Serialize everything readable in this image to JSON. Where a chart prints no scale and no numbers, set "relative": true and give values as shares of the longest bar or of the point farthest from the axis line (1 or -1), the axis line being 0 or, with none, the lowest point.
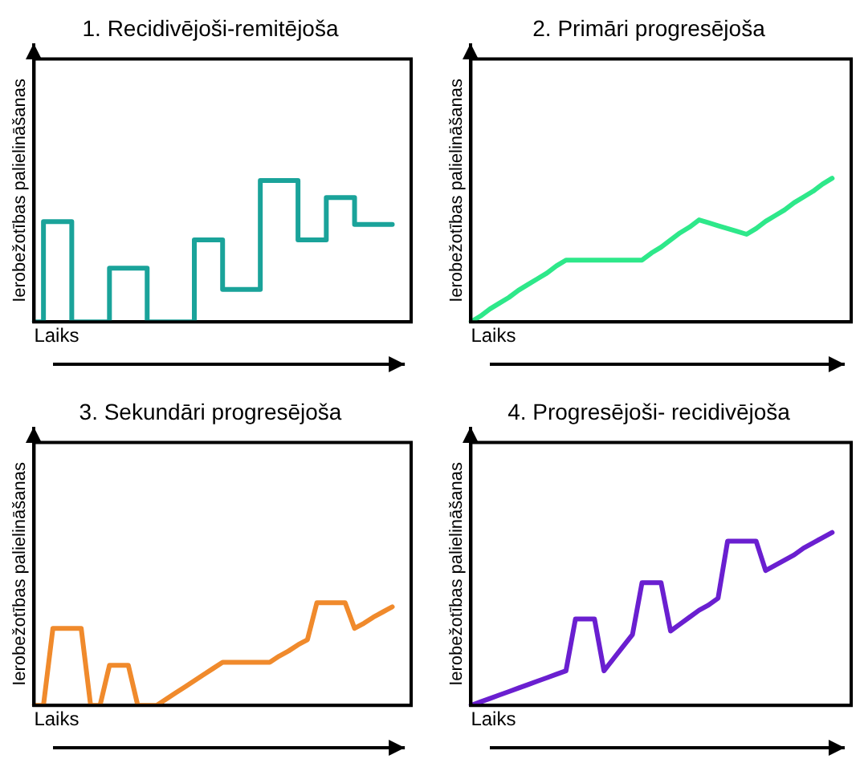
{
  "chart_data": [
    {
      "type": "step",
      "title": "1. Recidivējoši-remitējoša",
      "xlabel": "Laiks",
      "ylabel": "Ierobežotības palielināšanas",
      "relative": true,
      "tick_labels": false,
      "marker": "none",
      "categories": [
        null,
        null,
        null,
        null,
        null,
        null,
        null,
        null,
        null,
        null,
        null,
        null,
        null,
        null,
        null,
        null,
        null,
        null,
        null,
        null,
        null,
        null,
        null,
        null,
        null,
        null,
        null,
        null,
        null,
        null,
        null,
        null,
        null,
        null,
        null,
        null,
        null,
        null,
        null,
        null,
        null
      ],
      "series": [
        {
          "color": "#1aa39a",
          "values": [
            0,
            0,
            0.71,
            0.71,
            0.71,
            0,
            0,
            0,
            0,
            0.38,
            0.38,
            0.38,
            0.38,
            0,
            0,
            0,
            0,
            0,
            0.58,
            0.58,
            0.58,
            0.23,
            0.23,
            0.23,
            0.23,
            1,
            1,
            1,
            1,
            0.58,
            0.58,
            0.58,
            0.88,
            0.88,
            0.88,
            0.69,
            0.69,
            0.69,
            0.69,
            null,
            null
          ]
        }
      ]
    },
    {
      "type": "line",
      "title": "2. Primāri progresējoša",
      "xlabel": "Laiks",
      "ylabel": "Ierobežotības palielināšanas",
      "relative": true,
      "tick_labels": false,
      "marker": "none",
      "categories": [
        null,
        null,
        null,
        null,
        null,
        null,
        null,
        null,
        null,
        null,
        null,
        null,
        null,
        null,
        null,
        null,
        null,
        null,
        null,
        null,
        null,
        null,
        null,
        null,
        null,
        null,
        null,
        null,
        null,
        null,
        null,
        null,
        null,
        null,
        null,
        null,
        null,
        null,
        null,
        null,
        null
      ],
      "series": [
        {
          "color": "#2ee88a",
          "values": [
            0,
            0.04,
            0.09,
            0.13,
            0.17,
            0.22,
            0.26,
            0.3,
            0.34,
            0.39,
            0.43,
            0.43,
            0.43,
            0.43,
            0.43,
            0.43,
            0.43,
            0.43,
            0.43,
            0.48,
            0.52,
            0.57,
            0.62,
            0.66,
            0.71,
            0.69,
            0.67,
            0.65,
            0.63,
            0.61,
            0.65,
            0.7,
            0.74,
            0.78,
            0.83,
            0.87,
            0.91,
            0.96,
            1,
            null,
            null
          ]
        }
      ]
    },
    {
      "type": "line",
      "title": "3. Sekundāri progresējoša",
      "xlabel": "Laiks",
      "ylabel": "Ierobežotības palielināšanas",
      "relative": true,
      "tick_labels": false,
      "marker": "none",
      "categories": [
        null,
        null,
        null,
        null,
        null,
        null,
        null,
        null,
        null,
        null,
        null,
        null,
        null,
        null,
        null,
        null,
        null,
        null,
        null,
        null,
        null,
        null,
        null,
        null,
        null,
        null,
        null,
        null,
        null,
        null,
        null,
        null,
        null,
        null,
        null,
        null,
        null,
        null,
        null,
        null,
        null
      ],
      "series": [
        {
          "color": "#f08a2c",
          "values": [
            0,
            0,
            0.75,
            0.75,
            0.75,
            0.75,
            0,
            0,
            0.39,
            0.39,
            0.39,
            0,
            0,
            0,
            0.06,
            0.12,
            0.18,
            0.24,
            0.3,
            0.36,
            0.42,
            0.42,
            0.42,
            0.42,
            0.42,
            0.42,
            0.48,
            0.53,
            0.59,
            0.64,
            1,
            1,
            1,
            1,
            0.75,
            0.8,
            0.86,
            0.91,
            0.96,
            null,
            null
          ]
        }
      ]
    },
    {
      "type": "line",
      "title": "4. Progresējoši- recidivējoša",
      "xlabel": "Laiks",
      "ylabel": "Ierobežotības palielināšanas",
      "relative": true,
      "tick_labels": false,
      "marker": "none",
      "categories": [
        null,
        null,
        null,
        null,
        null,
        null,
        null,
        null,
        null,
        null,
        null,
        null,
        null,
        null,
        null,
        null,
        null,
        null,
        null,
        null,
        null,
        null,
        null,
        null,
        null,
        null,
        null,
        null,
        null,
        null,
        null,
        null,
        null,
        null,
        null,
        null,
        null,
        null,
        null,
        null,
        null
      ],
      "series": [
        {
          "color": "#6a1fd0",
          "values": [
            0,
            0.02,
            0.04,
            0.06,
            0.08,
            0.1,
            0.12,
            0.14,
            0.16,
            0.18,
            0.2,
            0.5,
            0.5,
            0.5,
            0.2,
            0.27,
            0.34,
            0.41,
            0.71,
            0.71,
            0.71,
            0.43,
            0.47,
            0.51,
            0.55,
            0.58,
            0.62,
            0.95,
            0.95,
            0.95,
            0.95,
            0.78,
            0.81,
            0.84,
            0.87,
            0.91,
            0.94,
            0.97,
            1,
            null,
            null
          ]
        }
      ]
    }
  ]
}
